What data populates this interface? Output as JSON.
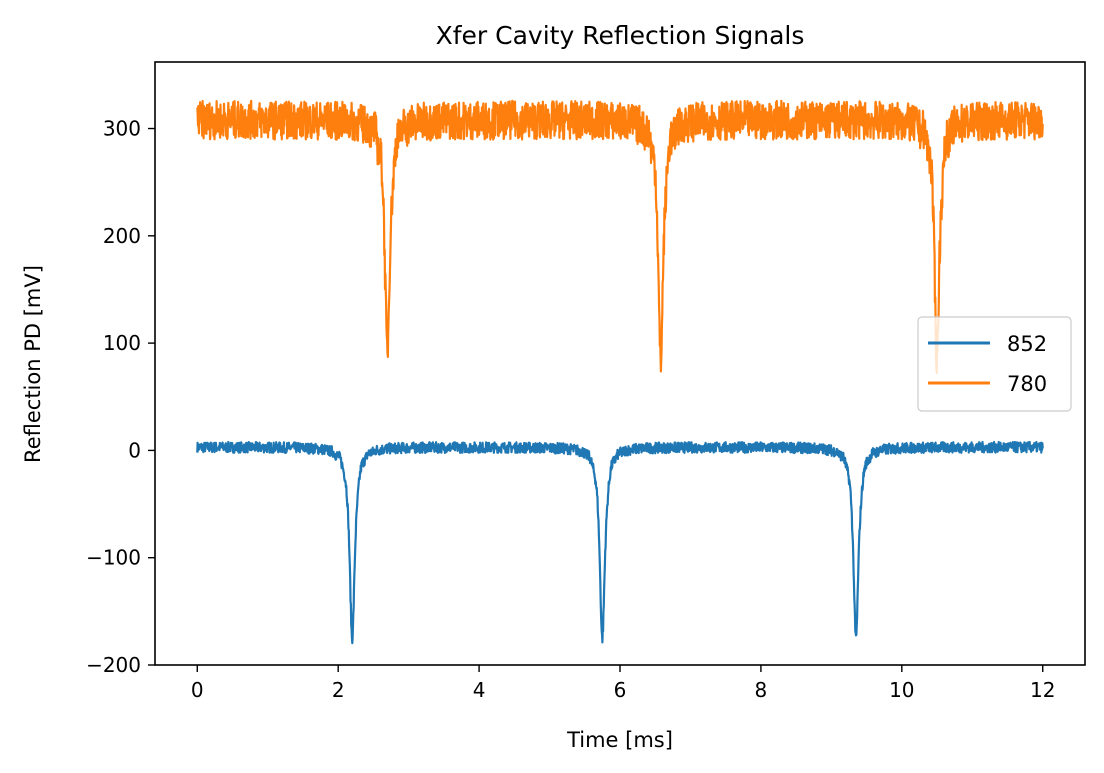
{
  "chart_data": {
    "type": "line",
    "title": "Xfer Cavity Reflection Signals",
    "xlabel": "Time [ms]",
    "ylabel": "Reflection PD [mV]",
    "xlim": [
      -0.6,
      12.6
    ],
    "ylim": [
      -200,
      362
    ],
    "xticks": [
      0,
      2,
      4,
      6,
      8,
      10,
      12
    ],
    "yticks": [
      -200,
      -100,
      0,
      100,
      200,
      300
    ],
    "xtick_labels": [
      "0",
      "2",
      "4",
      "6",
      "8",
      "10",
      "12"
    ],
    "ytick_labels": [
      "−200",
      "−100",
      "0",
      "100",
      "200",
      "300"
    ],
    "grid": false,
    "legend_position": "center-right",
    "series": [
      {
        "name": "852",
        "color": "#1f77b4",
        "x_range": [
          0,
          12
        ],
        "baseline": 3,
        "noise": 5,
        "dips": [
          {
            "x": 2.2,
            "min": -175
          },
          {
            "x": 5.75,
            "min": -175
          },
          {
            "x": 9.35,
            "min": -175
          }
        ]
      },
      {
        "name": "780",
        "color": "#ff7f0e",
        "x_range": [
          0,
          12
        ],
        "baseline": 308,
        "noise": 18,
        "dips": [
          {
            "x": 2.7,
            "min": 95
          },
          {
            "x": 6.58,
            "min": 85
          },
          {
            "x": 10.5,
            "min": 90
          }
        ]
      }
    ]
  }
}
